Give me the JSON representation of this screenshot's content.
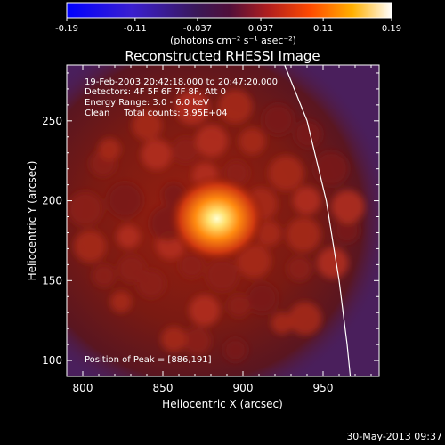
{
  "chart_data": {
    "type": "heatmap",
    "title": "Reconstructed RHESSI Image",
    "xlabel": "Heliocentric X (arcsec)",
    "ylabel": "Heliocentric Y (arcsec)",
    "xlim": [
      790,
      985
    ],
    "ylim": [
      90,
      285
    ],
    "x_ticks": [
      800,
      850,
      900,
      950
    ],
    "y_ticks": [
      100,
      150,
      200,
      250
    ],
    "colorbar": {
      "min": -0.19,
      "max": 0.19,
      "tick_values": [
        -0.19,
        -0.11,
        -0.037,
        0.037,
        0.11,
        0.19
      ],
      "tick_labels": [
        "-0.19",
        "-0.11",
        "-0.037",
        "0.037",
        "0.11",
        "0.19"
      ],
      "unit_label": "(photons cm⁻² s⁻¹ asec⁻²)"
    },
    "annotations": [
      "19-Feb-2003 20:42:18.000 to 20:47:20.000",
      "Detectors: 4F 5F 6F 7F 8F, Att 0",
      "Energy Range: 3.0 - 6.0 keV",
      "Clean     Total counts: 3.95E+04"
    ],
    "peak": {
      "label": "Position of Peak = [886,191]",
      "x": 886,
      "y": 191
    },
    "limb_curve": [
      {
        "x": 926,
        "y": 285
      },
      {
        "x": 940,
        "y": 250
      },
      {
        "x": 952,
        "y": 200
      },
      {
        "x": 960,
        "y": 150
      },
      {
        "x": 965,
        "y": 110
      },
      {
        "x": 967,
        "y": 90
      }
    ],
    "grid": false
  },
  "footer": {
    "date": "30-May-2013 09:37"
  },
  "colors": {
    "background": "#000000",
    "axes": "#ffffff",
    "outside_disk": "#4a1f5c",
    "limb": "#ffffff"
  }
}
